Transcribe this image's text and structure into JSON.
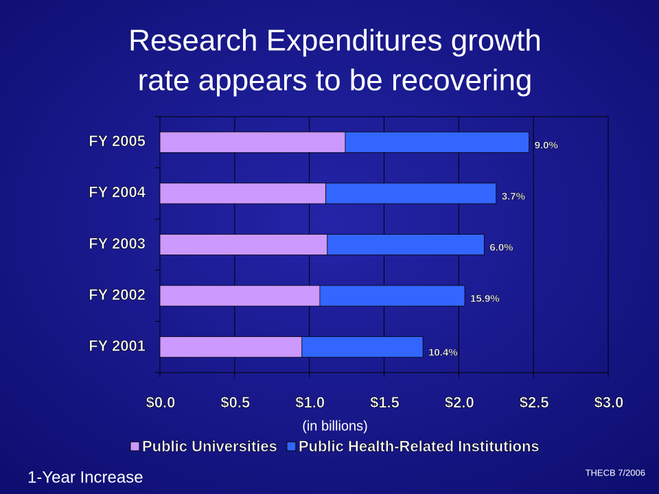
{
  "chart_data": {
    "type": "bar",
    "orientation": "horizontal",
    "stacked": true,
    "title": [
      "Research Expenditures growth",
      "rate appears to be recovering"
    ],
    "categories": [
      "FY 2005",
      "FY 2004",
      "FY 2003",
      "FY 2002",
      "FY 2001"
    ],
    "series": [
      {
        "name": "Public Universities",
        "color": "#cc99ff",
        "values": [
          1.24,
          1.11,
          1.12,
          1.07,
          0.95
        ]
      },
      {
        "name": "Public Health-Related Institutions",
        "color": "#3366ff",
        "values": [
          1.23,
          1.14,
          1.05,
          0.97,
          0.81
        ]
      }
    ],
    "annotations": [
      "9.0%",
      "3.7%",
      "6.0%",
      "15.9%",
      "10.4%"
    ],
    "xlabel": "(in billions)",
    "xlim": [
      0,
      3
    ],
    "xticks": [
      {
        "value": 0,
        "label": "$0.0"
      },
      {
        "value": 0.5,
        "label": "$0.5"
      },
      {
        "value": 1,
        "label": "$1.0"
      },
      {
        "value": 1.5,
        "label": "$1.5"
      },
      {
        "value": 2,
        "label": "$2.0"
      },
      {
        "value": 2.5,
        "label": "$2.5"
      },
      {
        "value": 3,
        "label": "$3.0"
      }
    ],
    "grid": true,
    "legend": "bottom",
    "footer_left": "1-Year Increase",
    "footer_right": "THECB 7/2006"
  }
}
